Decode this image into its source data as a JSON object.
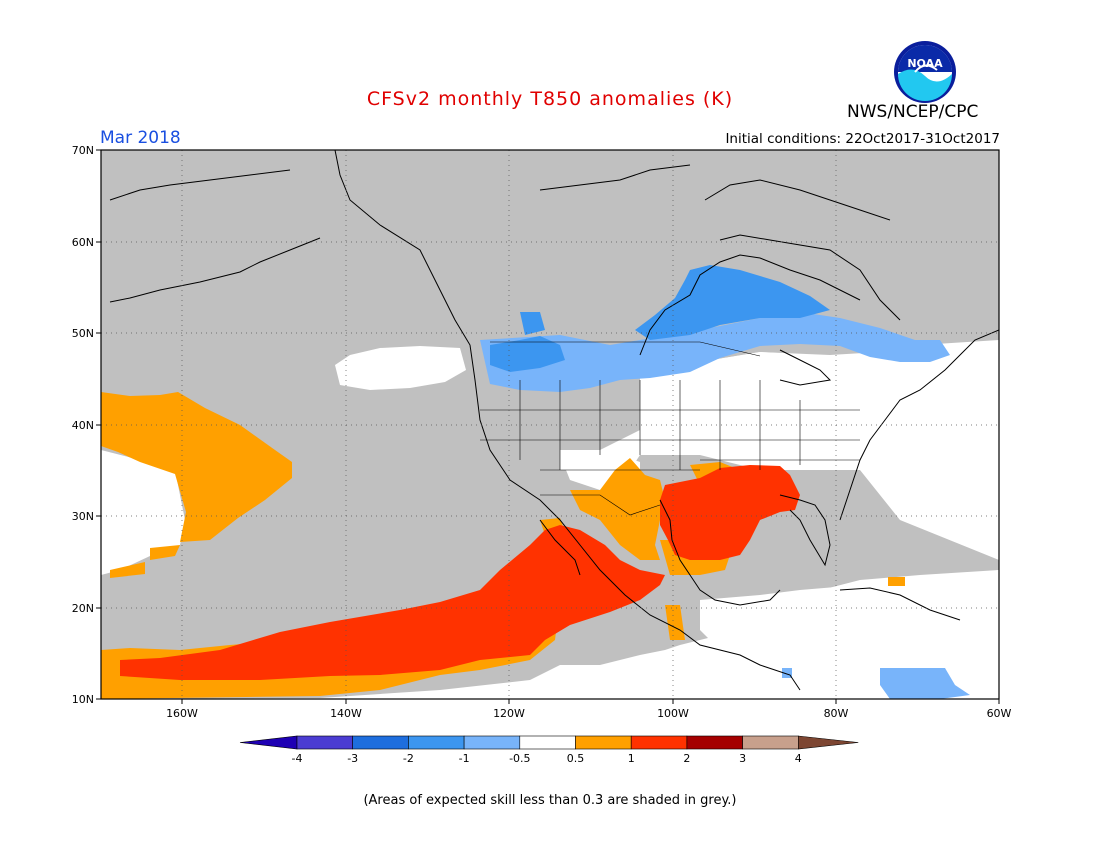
{
  "header": {
    "title": "CFSv2 monthly T850 anomalies (K)",
    "month": "Mar 2018",
    "initial_conditions": "Initial conditions: 22Oct2017-31Oct2017",
    "agency": "NWS/NCEP/CPC",
    "logo_text": "NOAA"
  },
  "map": {
    "lat_labels": [
      "70N",
      "60N",
      "50N",
      "40N",
      "30N",
      "20N",
      "10N"
    ],
    "lon_labels": [
      "160W",
      "140W",
      "120W",
      "100W",
      "80W",
      "60W"
    ],
    "lon_range": [
      -170,
      -60
    ],
    "lat_range": [
      10,
      70
    ]
  },
  "legend": {
    "labels": [
      "-4",
      "-3",
      "-2",
      "-1",
      "-0.5",
      "0.5",
      "1",
      "2",
      "3",
      "4"
    ],
    "colors": [
      "#1e00b4",
      "#4b3cd2",
      "#1e6ede",
      "#3c96f0",
      "#78b4fa",
      "#ffffff",
      "#ffa000",
      "#ff3200",
      "#a50000",
      "#c8a08c",
      "#7d4632"
    ]
  },
  "colors": {
    "grey": "#c0c0c0",
    "orange": "#ffa000",
    "red_orange": "#ff3200",
    "blue": "#3c96f0",
    "light_blue": "#78b4fa",
    "title_red": "#e00000",
    "month_blue": "#1a4fe0"
  },
  "footer": {
    "skill_note": "(Areas of expected skill less than 0.3 are shaded in grey.)"
  }
}
